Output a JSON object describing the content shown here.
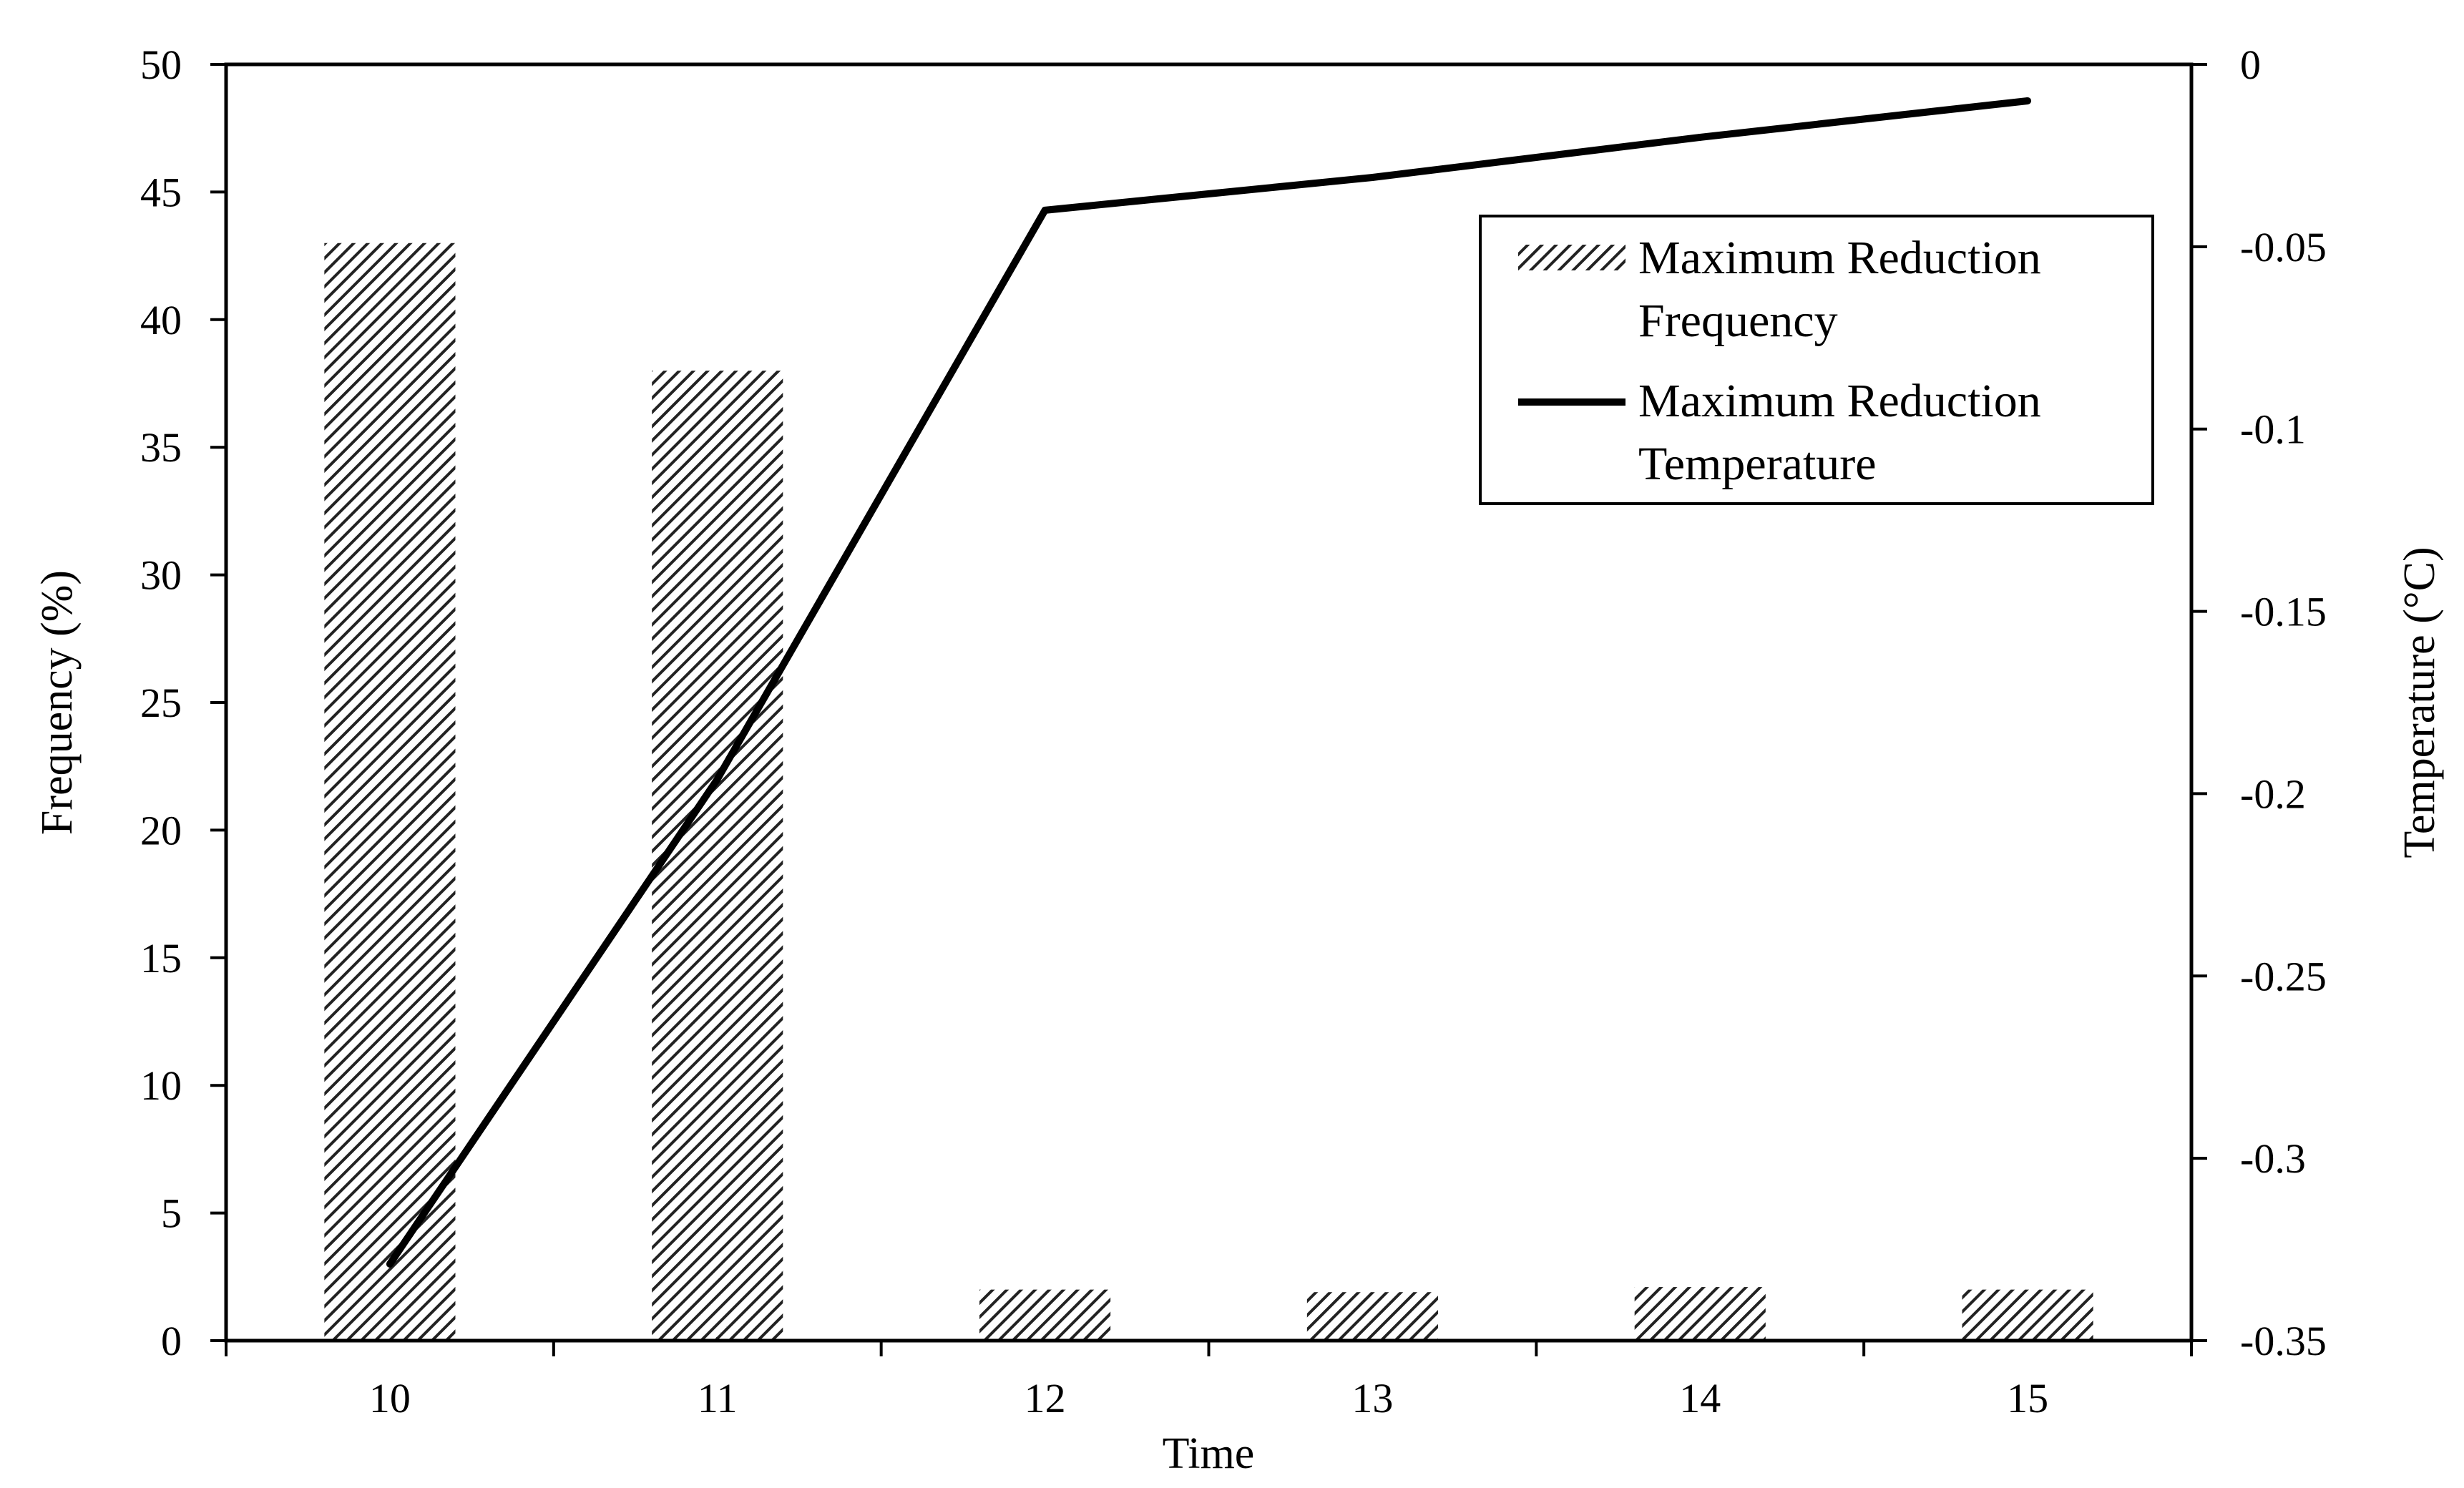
{
  "chart_data": {
    "type": "bar",
    "categories": [
      "10",
      "11",
      "12",
      "13",
      "14",
      "15"
    ],
    "xlabel": "Time",
    "ylabel": "Frequency (%)",
    "y2label": "Temperature (°C)",
    "ylim": [
      0,
      50
    ],
    "y2lim": [
      -0.35,
      0
    ],
    "yticks": [
      "0",
      "5",
      "10",
      "15",
      "20",
      "25",
      "30",
      "35",
      "40",
      "45",
      "50"
    ],
    "y2ticks": [
      "-0.35",
      "-0.3",
      "-0.25",
      "-0.2",
      "-0.15",
      "-0.1",
      "-0.05",
      "0"
    ],
    "grid": false,
    "legend_position": "top-right",
    "series": [
      {
        "name": "Maximum Reduction Frequency",
        "legend_lines": [
          "Maximum Reduction",
          "Frequency"
        ],
        "kind": "bar",
        "axis": "left",
        "values": [
          43,
          38,
          2,
          1.9,
          2.1,
          2
        ]
      },
      {
        "name": "Maximum Reduction Temperature",
        "legend_lines": [
          "Maximum Reduction",
          "Temperature"
        ],
        "kind": "line",
        "axis": "right",
        "values": [
          -0.329,
          -0.196,
          -0.04,
          -0.031,
          -0.02,
          -0.01
        ]
      }
    ],
    "colors": {
      "bar_hatch": "#222222",
      "line": "#000000",
      "axis": "#000000"
    }
  }
}
